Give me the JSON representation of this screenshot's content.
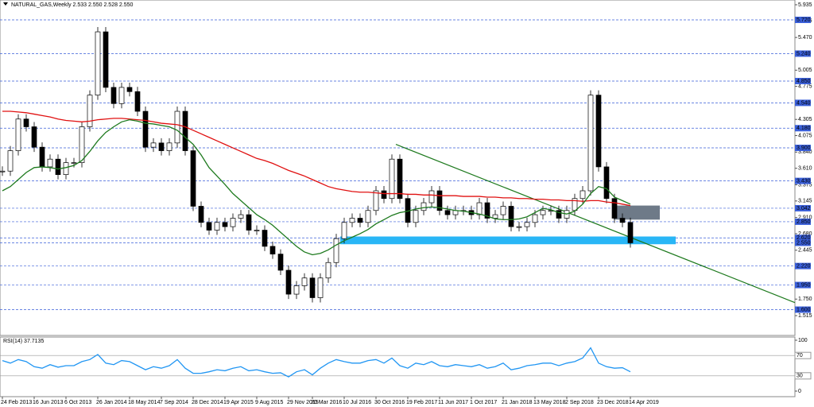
{
  "chart_data": [
    {
      "type": "candlestick",
      "title": "NATURAL_GAS,Weekly 2.533 2.550 2.528 2.550",
      "categories": [
        "24 Feb 2013",
        null,
        null,
        null,
        "16 Jun 2013",
        null,
        null,
        null,
        "6 Oct 2013",
        null,
        null,
        null,
        "26 Jan 2014",
        null,
        null,
        null,
        "18 May 2014",
        null,
        null,
        null,
        "7 Sep 2014",
        null,
        null,
        null,
        "28 Dec 2014",
        null,
        null,
        null,
        "19 Apr 2015",
        null,
        null,
        null,
        "9 Aug 2015",
        null,
        null,
        null,
        "29 Nov 2015",
        null,
        null,
        "20 Mar 2016",
        null,
        null,
        null,
        "10 Jul 2016",
        null,
        null,
        null,
        "30 Oct 2016",
        null,
        null,
        null,
        "19 Feb 2017",
        null,
        null,
        null,
        "11 Jun 2017",
        null,
        null,
        null,
        "1 Oct 2017",
        null,
        null,
        null,
        "21 Jan 2018",
        null,
        null,
        null,
        "13 May 2018",
        null,
        null,
        null,
        "2 Sep 2018",
        null,
        null,
        null,
        "23 Dec 2018",
        null,
        null,
        null,
        "14 Apr 2019"
      ],
      "series": [
        {
          "color": "#000000",
          "values": [
            3.57,
            3.86,
            4.31,
            4.2,
            3.91,
            3.63,
            3.74,
            3.52,
            3.69,
            3.69,
            4.2,
            4.65,
            5.55,
            4.76,
            4.53,
            4.76,
            4.7,
            4.42,
            3.91,
            3.97,
            3.86,
            3.97,
            4.42,
            3.86,
            3.07,
            2.84,
            2.73,
            2.84,
            2.78,
            2.9,
            2.95,
            2.73,
            2.73,
            2.5,
            2.39,
            2.16,
            1.82,
            1.94,
            2.05,
            1.77,
            2.05,
            2.27,
            2.61,
            2.84,
            2.9,
            2.84,
            3.01,
            3.29,
            3.18,
            3.74,
            3.18,
            2.84,
            3.01,
            3.12,
            3.29,
            3.01,
            2.95,
            3.01,
            3.01,
            2.95,
            3.12,
            2.9,
            2.95,
            3.07,
            2.78,
            2.78,
            2.84,
            2.95,
            3.01,
            3.01,
            2.9,
            3.01,
            3.18,
            3.29,
            4.65,
            3.63,
            3.18,
            2.9,
            2.84,
            2.55
          ]
        },
        {
          "color": "#e01010",
          "values": [
            4.42,
            4.42,
            4.41,
            4.4,
            4.38,
            4.36,
            4.34,
            4.31,
            4.29,
            4.28,
            4.27,
            4.28,
            4.3,
            4.31,
            4.32,
            4.32,
            4.31,
            4.3,
            4.29,
            4.27,
            4.25,
            4.24,
            4.23,
            4.2,
            4.15,
            4.1,
            4.05,
            4.0,
            3.95,
            3.9,
            3.85,
            3.8,
            3.75,
            3.72,
            3.68,
            3.63,
            3.58,
            3.54,
            3.5,
            3.45,
            3.4,
            3.35,
            3.32,
            3.3,
            3.28,
            3.27,
            3.27,
            3.26,
            3.25,
            3.25,
            3.25,
            3.24,
            3.24,
            3.23,
            3.23,
            3.22,
            3.22,
            3.22,
            3.21,
            3.21,
            3.21,
            3.2,
            3.2,
            3.19,
            3.19,
            3.18,
            3.18,
            3.17,
            3.17,
            3.16,
            3.16,
            3.15,
            3.15,
            3.14,
            3.15,
            3.15,
            3.13,
            3.12,
            3.1,
            3.08
          ]
        },
        {
          "color": "#1e7a1e",
          "values": [
            3.29,
            3.35,
            3.45,
            3.55,
            3.62,
            3.63,
            3.62,
            3.6,
            3.62,
            3.65,
            3.72,
            3.85,
            4.0,
            4.12,
            4.2,
            4.27,
            4.3,
            4.28,
            4.25,
            4.24,
            4.22,
            4.2,
            4.15,
            4.05,
            3.95,
            3.8,
            3.62,
            3.5,
            3.38,
            3.25,
            3.15,
            3.05,
            2.95,
            2.88,
            2.8,
            2.7,
            2.6,
            2.5,
            2.42,
            2.38,
            2.4,
            2.45,
            2.52,
            2.58,
            2.63,
            2.68,
            2.74,
            2.82,
            2.88,
            2.94,
            2.98,
            3.0,
            3.03,
            3.05,
            3.06,
            3.05,
            3.03,
            3.01,
            3.0,
            2.98,
            2.96,
            2.93,
            2.89,
            2.88,
            2.88,
            2.89,
            2.92,
            2.98,
            3.04,
            3.02,
            2.98,
            2.96,
            3.0,
            3.1,
            3.25,
            3.35,
            3.32,
            3.2,
            3.15,
            3.1
          ]
        }
      ],
      "ylim": [
        1.233,
        5.98
      ],
      "yticks": [
        5.935,
        5.705,
        {
          "value": 5.47,
          "label": "5.470"
        },
        5.005,
        4.775,
        4.305,
        4.075,
        {
          "value": 3.84,
          "label": "3.840"
        },
        {
          "value": 3.61,
          "label": "3.610"
        },
        3.375,
        3.145,
        {
          "value": 2.91,
          "label": "2.910"
        },
        {
          "value": 2.68,
          "label": "2.680"
        },
        2.445,
        {
          "value": 1.75,
          "label": "1.750"
        },
        1.515
      ],
      "levels": [
        {
          "value": 5.72,
          "label": "5.720"
        },
        {
          "value": 5.24,
          "label": "5.240"
        },
        {
          "value": 4.85,
          "label": "4.850"
        },
        {
          "value": 4.54,
          "label": "4.540"
        },
        {
          "value": 4.18,
          "label": "4.180"
        },
        {
          "value": 3.9,
          "label": "3.900"
        },
        {
          "value": 3.43,
          "label": "3.430"
        },
        3.042,
        {
          "value": 2.85,
          "label": "2.850"
        },
        {
          "value": 2.62,
          "label": "2.620"
        },
        {
          "value": 2.55,
          "label": "2.550"
        },
        {
          "value": 2.22,
          "label": "2.220"
        },
        {
          "value": 1.95,
          "label": "1.950"
        },
        {
          "value": 1.6,
          "label": "1.600"
        }
      ],
      "level_color": "#3a5fd9",
      "zones": [
        {
          "low": 2.53,
          "high": 2.64,
          "color": "#29b6f6"
        },
        {
          "low": 2.88,
          "high": 3.08,
          "color": "#6e7a88"
        }
      ],
      "trendline": {
        "values": [
          3.95,
          1.7
        ],
        "color": "#1e7a1e"
      }
    },
    {
      "type": "line",
      "title": "RSI(14) 37.7135",
      "series": [
        {
          "color": "#2196f3",
          "values": [
            60,
            55,
            62,
            58,
            48,
            45,
            52,
            47,
            50,
            50,
            58,
            62,
            72,
            55,
            52,
            60,
            58,
            50,
            42,
            48,
            45,
            50,
            62,
            45,
            35,
            35,
            38,
            42,
            40,
            45,
            48,
            40,
            42,
            38,
            35,
            36,
            28,
            38,
            42,
            32,
            45,
            55,
            62,
            58,
            55,
            55,
            60,
            62,
            55,
            65,
            50,
            45,
            55,
            52,
            58,
            50,
            48,
            52,
            50,
            48,
            52,
            45,
            48,
            55,
            42,
            45,
            50,
            52,
            55,
            55,
            50,
            55,
            58,
            65,
            85,
            55,
            48,
            45,
            46,
            38
          ]
        }
      ],
      "ylim": [
        0,
        100
      ],
      "yticks": [
        100,
        70,
        30,
        0
      ],
      "levels": [
        70,
        30
      ]
    }
  ]
}
